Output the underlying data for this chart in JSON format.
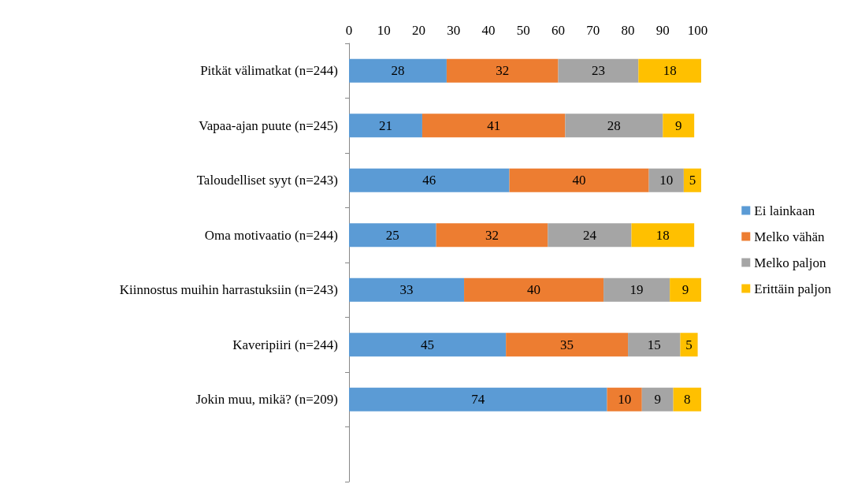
{
  "chart_data": {
    "type": "bar",
    "orientation": "horizontal",
    "stacked": true,
    "data_labels": true,
    "legend": "right",
    "grid": false,
    "categories": [
      "Pitkät välimatkat (n=244)",
      "Vapaa-ajan puute (n=245)",
      "Taloudelliset syyt (n=243)",
      "Oma motivaatio (n=244)",
      "Kiinnostus muihin harrastuksiin (n=243)",
      "Kaveripiiri (n=244)",
      "Jokin muu, mikä? (n=209)",
      null
    ],
    "xlim": [
      0,
      101
    ],
    "xticks": [
      0,
      10,
      20,
      30,
      40,
      50,
      60,
      70,
      80,
      90,
      100
    ],
    "series": [
      {
        "name": "Ei lainkaan",
        "color": "#5b9bd5",
        "values": [
          28,
          21,
          46,
          25,
          33,
          45,
          74,
          null
        ]
      },
      {
        "name": "Melko vähän",
        "color": "#ed7d31",
        "values": [
          32,
          41,
          40,
          32,
          40,
          35,
          10,
          null
        ]
      },
      {
        "name": "Melko paljon",
        "color": "#a5a5a5",
        "values": [
          23,
          28,
          10,
          24,
          19,
          15,
          9,
          null
        ]
      },
      {
        "name": "Erittäin paljon",
        "color": "#ffc000",
        "values": [
          18,
          9,
          5,
          18,
          9,
          5,
          8,
          null
        ]
      }
    ]
  }
}
